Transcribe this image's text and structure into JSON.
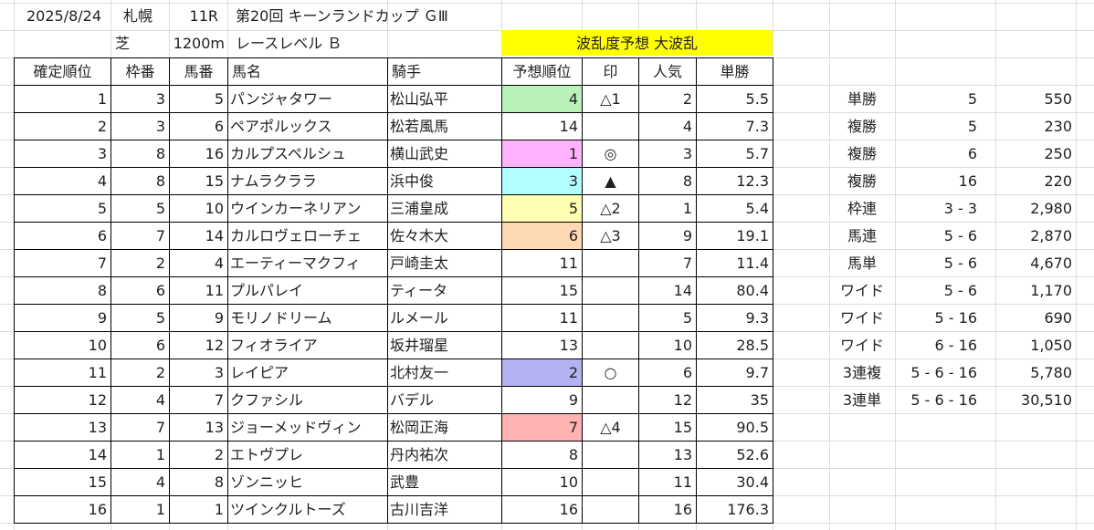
{
  "header": {
    "date": "2025/8/24",
    "venue": "札幌",
    "race_no": "11R",
    "race_name": "第20回 キーンランドカップ ＧⅢ",
    "surface": "芝",
    "distance": "1200m",
    "race_level": "レースレベル Ｂ",
    "forecast": "波乱度予想 大波乱",
    "forecast_bg": "#ffff00"
  },
  "columns": [
    "確定順位",
    "枠番",
    "馬番",
    "馬名",
    "騎手",
    "予想順位",
    "印",
    "人気",
    "単勝"
  ],
  "rows": [
    {
      "finish": "1",
      "frame": "3",
      "number": "5",
      "horse": "パンジャタワー",
      "jockey": "松山弘平",
      "pred": "4",
      "mark": "△1",
      "pop": "2",
      "odds": "5.5",
      "pred_color": "#b9f2b9"
    },
    {
      "finish": "2",
      "frame": "3",
      "number": "6",
      "horse": "ペアポルックス",
      "jockey": "松若風馬",
      "pred": "14",
      "mark": "",
      "pop": "4",
      "odds": "7.3",
      "pred_color": ""
    },
    {
      "finish": "3",
      "frame": "8",
      "number": "16",
      "horse": "カルプスペルシュ",
      "jockey": "横山武史",
      "pred": "1",
      "mark": "◎",
      "pop": "3",
      "odds": "5.7",
      "pred_color": "#ffb3ff"
    },
    {
      "finish": "4",
      "frame": "8",
      "number": "15",
      "horse": "ナムラクララ",
      "jockey": "浜中俊",
      "pred": "3",
      "mark": "▲",
      "pop": "8",
      "odds": "12.3",
      "pred_color": "#b3ffff"
    },
    {
      "finish": "5",
      "frame": "5",
      "number": "10",
      "horse": "ウインカーネリアン",
      "jockey": "三浦皇成",
      "pred": "5",
      "mark": "△2",
      "pop": "1",
      "odds": "5.4",
      "pred_color": "#ffffb3"
    },
    {
      "finish": "6",
      "frame": "7",
      "number": "14",
      "horse": "カルロヴェローチェ",
      "jockey": "佐々木大",
      "pred": "6",
      "mark": "△3",
      "pop": "9",
      "odds": "19.1",
      "pred_color": "#ffd9b3"
    },
    {
      "finish": "7",
      "frame": "2",
      "number": "4",
      "horse": "エーティーマクフィ",
      "jockey": "戸崎圭太",
      "pred": "11",
      "mark": "",
      "pop": "7",
      "odds": "11.4",
      "pred_color": ""
    },
    {
      "finish": "8",
      "frame": "6",
      "number": "11",
      "horse": "プルパレイ",
      "jockey": "ティータ",
      "pred": "15",
      "mark": "",
      "pop": "14",
      "odds": "80.4",
      "pred_color": ""
    },
    {
      "finish": "9",
      "frame": "5",
      "number": "9",
      "horse": "モリノドリーム",
      "jockey": "ルメール",
      "pred": "11",
      "mark": "",
      "pop": "5",
      "odds": "9.3",
      "pred_color": ""
    },
    {
      "finish": "10",
      "frame": "6",
      "number": "12",
      "horse": "フィオライア",
      "jockey": "坂井瑠星",
      "pred": "13",
      "mark": "",
      "pop": "10",
      "odds": "28.5",
      "pred_color": ""
    },
    {
      "finish": "11",
      "frame": "2",
      "number": "3",
      "horse": "レイピア",
      "jockey": "北村友一",
      "pred": "2",
      "mark": "○",
      "pop": "6",
      "odds": "9.7",
      "pred_color": "#b3b3f2"
    },
    {
      "finish": "12",
      "frame": "4",
      "number": "7",
      "horse": "クファシル",
      "jockey": "バデル",
      "pred": "9",
      "mark": "",
      "pop": "12",
      "odds": "35",
      "pred_color": ""
    },
    {
      "finish": "13",
      "frame": "7",
      "number": "13",
      "horse": "ジョーメッドヴィン",
      "jockey": "松岡正海",
      "pred": "7",
      "mark": "△4",
      "pop": "15",
      "odds": "90.5",
      "pred_color": "#ffb3b3"
    },
    {
      "finish": "14",
      "frame": "1",
      "number": "2",
      "horse": "エトヴプレ",
      "jockey": "丹内祐次",
      "pred": "8",
      "mark": "",
      "pop": "13",
      "odds": "52.6",
      "pred_color": ""
    },
    {
      "finish": "15",
      "frame": "4",
      "number": "8",
      "horse": "ゾンニッヒ",
      "jockey": "武豊",
      "pred": "10",
      "mark": "",
      "pop": "11",
      "odds": "30.4",
      "pred_color": ""
    },
    {
      "finish": "16",
      "frame": "1",
      "number": "1",
      "horse": "ツインクルトーズ",
      "jockey": "古川吉洋",
      "pred": "16",
      "mark": "",
      "pop": "16",
      "odds": "176.3",
      "pred_color": ""
    }
  ],
  "payouts": [
    {
      "type": "単勝",
      "combo": "5",
      "amount": "550"
    },
    {
      "type": "複勝",
      "combo": "5",
      "amount": "230"
    },
    {
      "type": "複勝",
      "combo": "6",
      "amount": "250"
    },
    {
      "type": "複勝",
      "combo": "16",
      "amount": "220"
    },
    {
      "type": "枠連",
      "combo": "3 - 3",
      "amount": "2,980"
    },
    {
      "type": "馬連",
      "combo": "5 - 6",
      "amount": "2,870"
    },
    {
      "type": "馬単",
      "combo": "5 - 6",
      "amount": "4,670"
    },
    {
      "type": "ワイド",
      "combo": "5 - 6",
      "amount": "1,170"
    },
    {
      "type": "ワイド",
      "combo": "5 - 16",
      "amount": "690"
    },
    {
      "type": "ワイド",
      "combo": "6 - 16",
      "amount": "1,050"
    },
    {
      "type": "3連複",
      "combo": "5 - 6 - 16",
      "amount": "5,780"
    },
    {
      "type": "3連単",
      "combo": "5 - 6 - 16",
      "amount": "30,510"
    }
  ]
}
